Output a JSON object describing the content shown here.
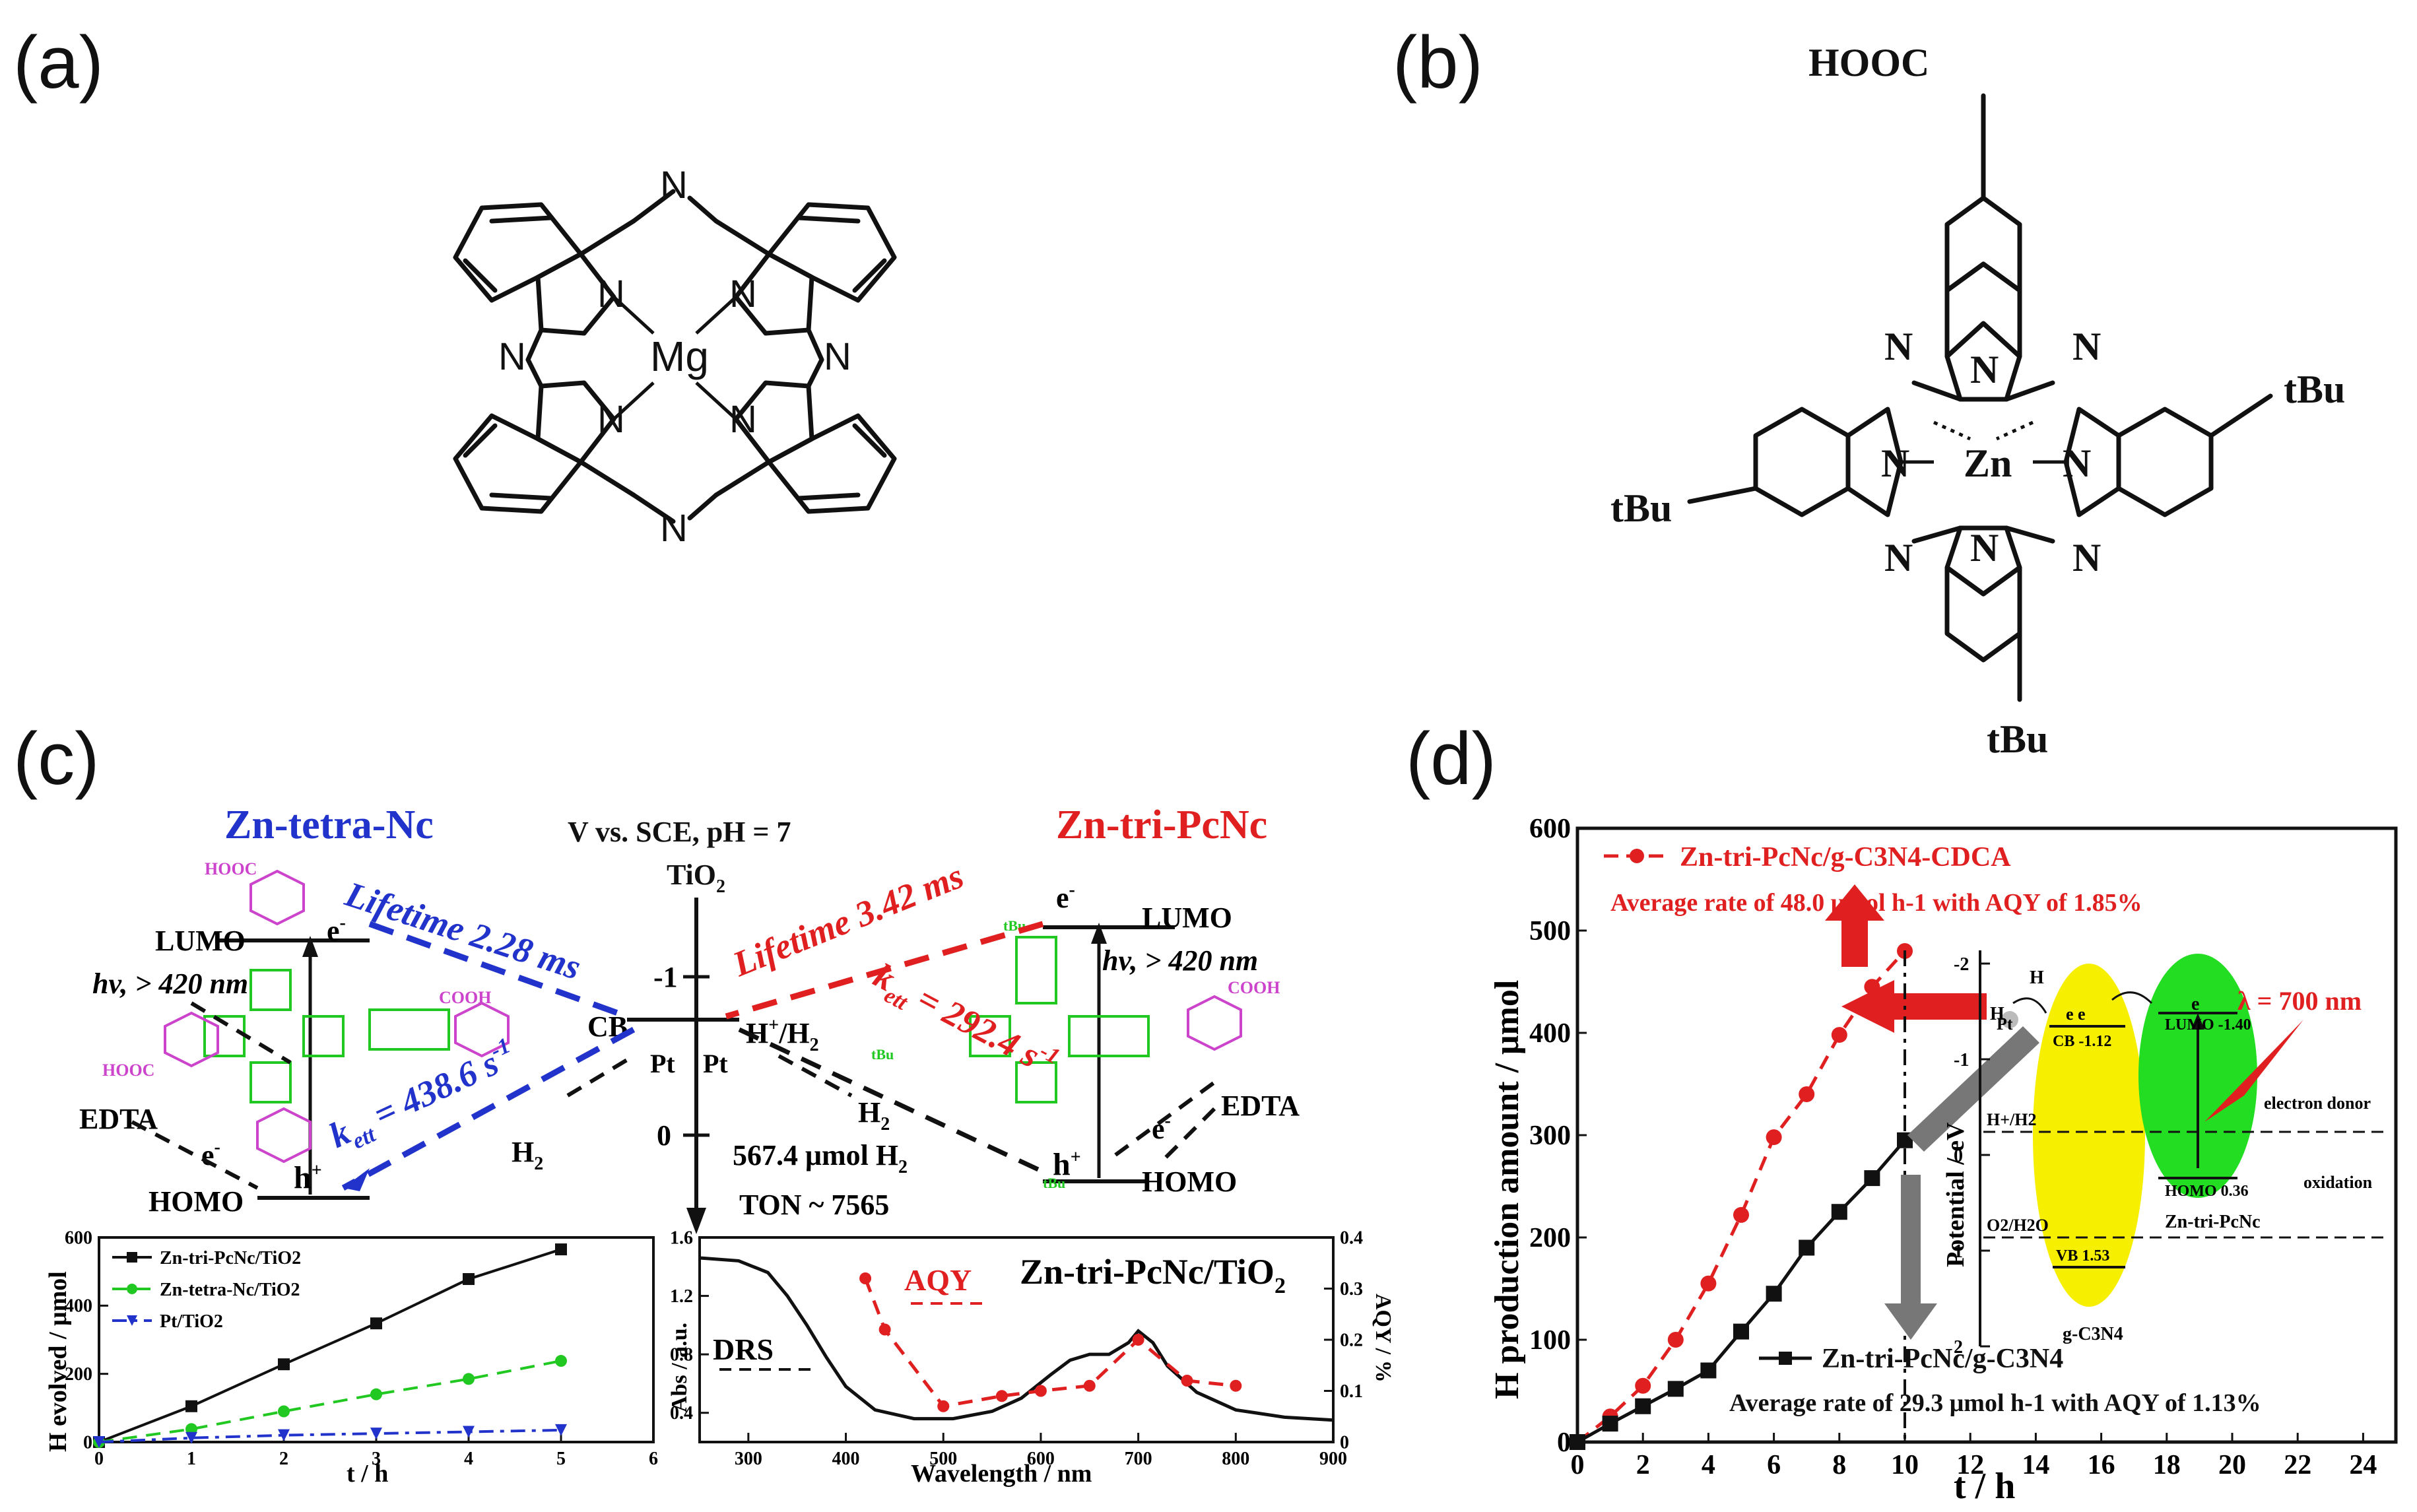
{
  "panels": {
    "a": {
      "label": "(a)",
      "atoms": {
        "N": "N",
        "Mg": "Mg"
      }
    },
    "b": {
      "label": "(b)",
      "atoms": {
        "N": "N",
        "Zn": "Zn",
        "tBu": "tBu",
        "HOOC": "HOOC"
      }
    },
    "c": {
      "label": "(c)",
      "scheme": {
        "left_title": "Zn-tetra-Nc",
        "right_title": "Zn-tri-PcNc",
        "center_header": "V vs. SCE, pH = 7",
        "tio2": "TiO",
        "tio2_sub": "2",
        "lifetime_left": "Lifetime 2.28 ms",
        "lifetime_right": "Lifetime 3.42 ms",
        "kett_left": "k",
        "kett_left_sub": "ett",
        "kett_left_val": " = 438.6 s",
        "kett_left_sup": "-1",
        "kett_right": "k",
        "kett_right_sub": "ett",
        "kett_right_val": " = 292.4 s",
        "kett_right_sup": "-1",
        "lumo": "LUMO",
        "homo": "HOMO",
        "hv": "hv, > 420 nm",
        "edta": "EDTA",
        "electron": "e",
        "electron_sup": "-",
        "hole": "h",
        "hole_sup": "+",
        "cb": "CB",
        "pt": "Pt",
        "h_couple": "H",
        "h_couple_sup": "+",
        "h_couple_tail": "/H",
        "h_couple_sub": "2",
        "h2": "H",
        "h2_sub": "2",
        "axis_m1": "-1",
        "axis_0": "0",
        "yield": "567.4 μmol H",
        "yield_sub": "2",
        "ton": "TON ~ 7565",
        "hooc": "HOOC",
        "cooh": "COOH",
        "tbu": "tBu"
      },
      "chart_left": {
        "ylabel": "H evolved / μmol",
        "ylabel_sub": "2",
        "xlabel": "t / h"
      },
      "chart_right": {
        "title": "Zn-tri-PcNc/TiO",
        "title_sub": "2",
        "ylabel_left": "Abs / a.u.",
        "ylabel_right": "AQY / %",
        "xlabel": "Wavelength / nm",
        "drs_label": "DRS",
        "aqy_label": "AQY"
      }
    },
    "d": {
      "label": "(d)",
      "ylabel": "H production amount / μmol",
      "ylabel_sub": "2",
      "xlabel": "t / h",
      "legend_red": "Zn-tri-PcNc/g-C3N4-CDCA",
      "legend_black": "Zn-tri-PcNc/g-C3N4",
      "rate_red": "Average rate of 48.0 μmol h-1 with AQY of 1.85%",
      "rate_black": "Average rate of 29.3 μmol h-1 with AQY of 1.13%",
      "inset": {
        "ylabel": "Potential / eV",
        "ticks": [
          "-2",
          "-1",
          "0",
          "1",
          "2"
        ],
        "h2": "H",
        "hplus": "H",
        "pt": "Pt",
        "ee": "e e",
        "cb": "CB -1.12",
        "vb": "VB 1.53",
        "lumo": "LUMO -1.40",
        "homo": "HOMO 0.36",
        "e": "e",
        "h_h2": "H+/H2",
        "o2_h2o": "O2/H2O",
        "gc3n4": "g-C3N4",
        "dye": "Zn-tri-PcNc",
        "lambda": "λ = 700 nm",
        "donor": "electron donor",
        "oxidation": "oxidation"
      }
    }
  },
  "colors": {
    "black": "#111111",
    "red": "#e02020",
    "blue": "#2233cc",
    "green": "#22c822",
    "magenta": "#cc44cc",
    "yellow": "#f6f000",
    "inset_green": "#22dd22",
    "gray": "#777777"
  },
  "chart_data": [
    {
      "type": "line",
      "panel": "c-left",
      "xlabel": "t / h",
      "ylabel": "H2 evolved / μmol",
      "xlim": [
        0,
        6
      ],
      "ylim": [
        0,
        600
      ],
      "x_ticks": [
        0,
        1,
        2,
        3,
        4,
        5,
        6
      ],
      "y_ticks": [
        0,
        200,
        400,
        600
      ],
      "legend": "top-left",
      "series": [
        {
          "name": "Zn-tri-PcNc/TiO2",
          "color": "#111111",
          "marker": "square",
          "x": [
            0,
            1,
            2,
            3,
            4,
            5
          ],
          "y": [
            0,
            105,
            228,
            348,
            478,
            565
          ]
        },
        {
          "name": "Zn-tetra-Nc/TiO2",
          "color": "#22c822",
          "marker": "circle",
          "dash": "dash",
          "x": [
            0,
            1,
            2,
            3,
            4,
            5
          ],
          "y": [
            0,
            38,
            90,
            140,
            185,
            238
          ]
        },
        {
          "name": "Pt/TiO2",
          "color": "#2233cc",
          "marker": "triangle",
          "dash": "dashdot",
          "x": [
            0,
            1,
            2,
            3,
            4,
            5
          ],
          "y": [
            0,
            12,
            20,
            25,
            30,
            35
          ]
        }
      ]
    },
    {
      "type": "line",
      "panel": "c-right",
      "title": "Zn-tri-PcNc/TiO2",
      "xlabel": "Wavelength / nm",
      "ylabel": "Abs / a.u.",
      "ylabel_right": "AQY / %",
      "xlim": [
        250,
        900
      ],
      "ylim": [
        0.2,
        1.6
      ],
      "ylim_right": [
        0,
        0.4
      ],
      "x_ticks": [
        300,
        400,
        500,
        600,
        700,
        800,
        900
      ],
      "y_ticks": [
        0.4,
        0.8,
        1.2,
        1.6
      ],
      "y_ticks_right": [
        0.0,
        0.1,
        0.2,
        0.3,
        0.4
      ],
      "series": [
        {
          "name": "DRS",
          "color": "#111111",
          "x": [
            250,
            290,
            320,
            340,
            360,
            380,
            400,
            430,
            470,
            510,
            550,
            580,
            610,
            630,
            650,
            670,
            690,
            700,
            715,
            730,
            760,
            800,
            850,
            900
          ],
          "y": [
            1.46,
            1.44,
            1.36,
            1.2,
            1.0,
            0.78,
            0.58,
            0.42,
            0.36,
            0.36,
            0.41,
            0.5,
            0.66,
            0.76,
            0.8,
            0.8,
            0.88,
            0.96,
            0.88,
            0.72,
            0.54,
            0.42,
            0.37,
            0.35
          ]
        },
        {
          "name": "AQY",
          "color": "#e02020",
          "marker": "circle",
          "dash": "dash",
          "axis": "right",
          "x": [
            420,
            440,
            500,
            560,
            600,
            650,
            700,
            750,
            800
          ],
          "y": [
            0.32,
            0.22,
            0.07,
            0.09,
            0.1,
            0.11,
            0.2,
            0.12,
            0.11
          ]
        }
      ]
    },
    {
      "type": "line",
      "panel": "d",
      "xlabel": "t / h",
      "ylabel": "H2 production amount / μmol",
      "xlim": [
        0,
        25
      ],
      "ylim": [
        0,
        600
      ],
      "x_ticks": [
        0,
        2,
        4,
        6,
        8,
        10,
        12,
        14,
        16,
        18,
        20,
        22,
        24
      ],
      "y_ticks": [
        0,
        100,
        200,
        300,
        400,
        500,
        600
      ],
      "series": [
        {
          "name": "Zn-tri-PcNc/g-C3N4-CDCA",
          "color": "#e02020",
          "marker": "circle",
          "dash": "dash",
          "x": [
            0,
            1,
            2,
            3,
            4,
            5,
            6,
            7,
            8,
            9,
            10
          ],
          "y": [
            0,
            25,
            55,
            100,
            155,
            222,
            298,
            340,
            398,
            445,
            480
          ]
        },
        {
          "name": "Zn-tri-PcNc/g-C3N4",
          "color": "#111111",
          "marker": "square",
          "x": [
            0,
            1,
            2,
            3,
            4,
            5,
            6,
            7,
            8,
            9,
            10
          ],
          "y": [
            0,
            18,
            35,
            52,
            70,
            108,
            145,
            190,
            225,
            258,
            295
          ]
        }
      ]
    }
  ]
}
